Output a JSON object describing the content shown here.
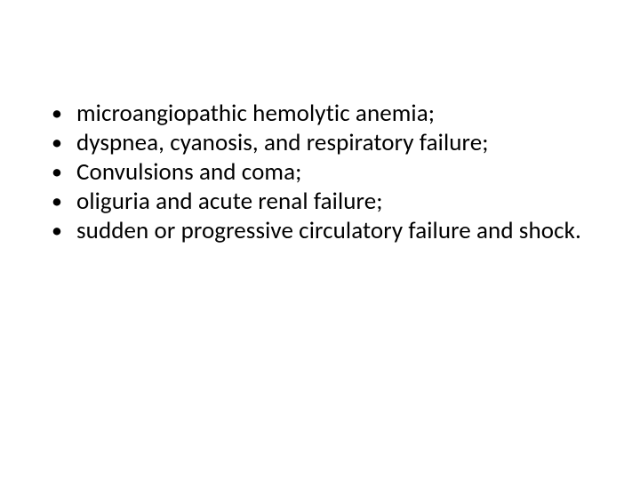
{
  "slide": {
    "background_color": "#ffffff",
    "text_color": "#000000",
    "font_family": "Calibri",
    "font_size_pt": 27,
    "bullet_glyph": "•",
    "items": [
      "microangiopathic hemolytic anemia;",
      "dyspnea, cyanosis, and respiratory failure;",
      "Convulsions and coma;",
      "oliguria and acute renal failure;",
      "sudden or progressive circulatory failure and shock."
    ]
  }
}
